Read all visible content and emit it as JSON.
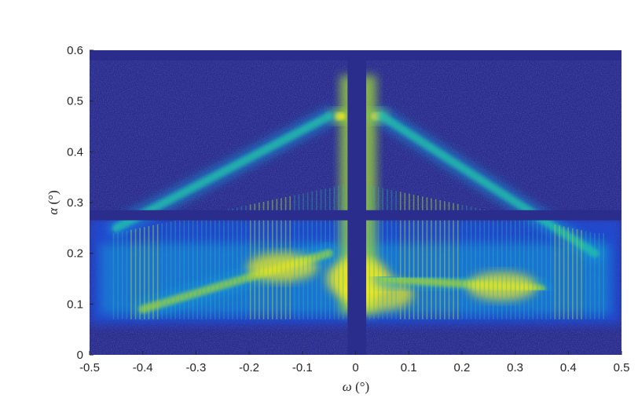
{
  "chart_data": {
    "type": "heatmap",
    "title": "",
    "xlabel": {
      "symbol": "ω",
      "unit": "(°)"
    },
    "ylabel": {
      "symbol": "α",
      "unit": "(°)"
    },
    "xlim": [
      -0.5,
      0.5
    ],
    "ylim": [
      0,
      0.6
    ],
    "xticks": [
      -0.5,
      -0.4,
      -0.3,
      -0.2,
      -0.1,
      0,
      0.1,
      0.2,
      0.3,
      0.4,
      0.5
    ],
    "xtick_labels": [
      "-0.5",
      "-0.4",
      "-0.3",
      "-0.2",
      "-0.1",
      "0",
      "0.1",
      "0.2",
      "0.3",
      "0.4",
      "0.5"
    ],
    "yticks": [
      0,
      0.1,
      0.2,
      0.3,
      0.4,
      0.5,
      0.6
    ],
    "ytick_labels": [
      "0",
      "0.1",
      "0.2",
      "0.3",
      "0.4",
      "0.5",
      "0.6"
    ],
    "colormap": [
      "#2b2d8c",
      "#1f4fe0",
      "#1896d8",
      "#21c2a8",
      "#9bd13c",
      "#f7e81f"
    ],
    "background_color": "#2b2d8c",
    "detector_gaps": {
      "vertical_omega": [
        -0.015,
        0.02
      ],
      "horizontal_alpha": [
        0.265,
        0.285
      ],
      "top_alpha": [
        0.58,
        0.6
      ]
    },
    "features": [
      {
        "name": "specular-rod",
        "omega_range": [
          -0.02,
          0.03
        ],
        "alpha_range": [
          0.08,
          0.55
        ],
        "peak": "high"
      },
      {
        "name": "bragg-spot",
        "omega": -0.03,
        "alpha": 0.47,
        "peak": "high"
      },
      {
        "name": "bragg-spot",
        "omega": 0.04,
        "alpha": 0.47,
        "peak": "high"
      },
      {
        "name": "left-diagonal-band",
        "from": [
          -0.45,
          0.25
        ],
        "to": [
          -0.05,
          0.47
        ],
        "peak": "medium"
      },
      {
        "name": "right-diagonal-band",
        "from": [
          0.05,
          0.47
        ],
        "to": [
          0.45,
          0.2
        ],
        "peak": "medium"
      },
      {
        "name": "left-lower-arc",
        "from": [
          -0.4,
          0.09
        ],
        "to": [
          -0.05,
          0.2
        ],
        "peak": "high"
      },
      {
        "name": "right-lower-arc",
        "from": [
          0.05,
          0.15
        ],
        "to": [
          0.35,
          0.13
        ],
        "peak": "high"
      },
      {
        "name": "fringe-band",
        "omega_range": [
          -0.5,
          0.5
        ],
        "alpha_range": [
          0.08,
          0.27
        ],
        "peak": "medium"
      }
    ]
  }
}
